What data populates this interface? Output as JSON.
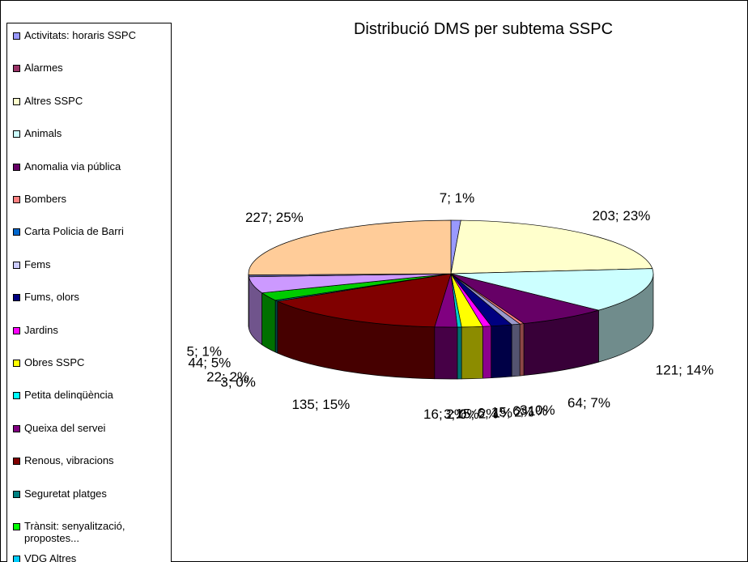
{
  "chart_data": {
    "type": "pie3d",
    "title": "Distribució DMS per subtema SSPC",
    "categories": [
      "Activitats: horaris SSPC",
      "Alarmes",
      "Altres SSPC",
      "Animals",
      "Anomalia via pública",
      "Bombers",
      "Carta Policia de Barri",
      "Fems",
      "Fums, olors",
      "Jardins",
      "Obres SSPC",
      "Petita delinqüència",
      "Queixa del servei",
      "Renous, vibracions",
      "Seguretat platges",
      "Trànsit: senyalització, propostes...",
      "VDG Altres"
    ],
    "values": [
      7,
      203,
      121,
      64,
      3,
      6,
      15,
      6,
      15,
      3,
      16,
      135,
      3,
      22,
      44,
      5,
      227
    ],
    "value_labels": [
      "7; 1%",
      "203; 23%",
      "121; 14%",
      "64; 7%",
      "3; 0%",
      "6; 1%",
      "15; 2%",
      "6; 1%",
      "15; 2%",
      "3; 0%",
      "16; 2%",
      "135; 15%",
      "3; 0%",
      "22; 2%",
      "44; 5%",
      "5; 1%",
      "227; 25%"
    ],
    "colors": [
      "#9999FF",
      "#FFFFCC",
      "#CCFFFF",
      "#660066",
      "#FF8080",
      "#9999CC",
      "#000080",
      "#FF00FF",
      "#FFFF00",
      "#00CCCC",
      "#800080",
      "#800000",
      "#008080",
      "#00CC00",
      "#CC99FF",
      "#666699",
      "#FFCC99"
    ],
    "legend_colors": [
      "#9999FF",
      "#993366",
      "#FFFFCC",
      "#CCFFFF",
      "#660066",
      "#FF8080",
      "#0066CC",
      "#CCCCFF",
      "#000080",
      "#FF00FF",
      "#FFFF00",
      "#00FFFF",
      "#800080",
      "#800000",
      "#008080",
      "#00FF00",
      "#00CCFF"
    ],
    "legend": "left"
  }
}
